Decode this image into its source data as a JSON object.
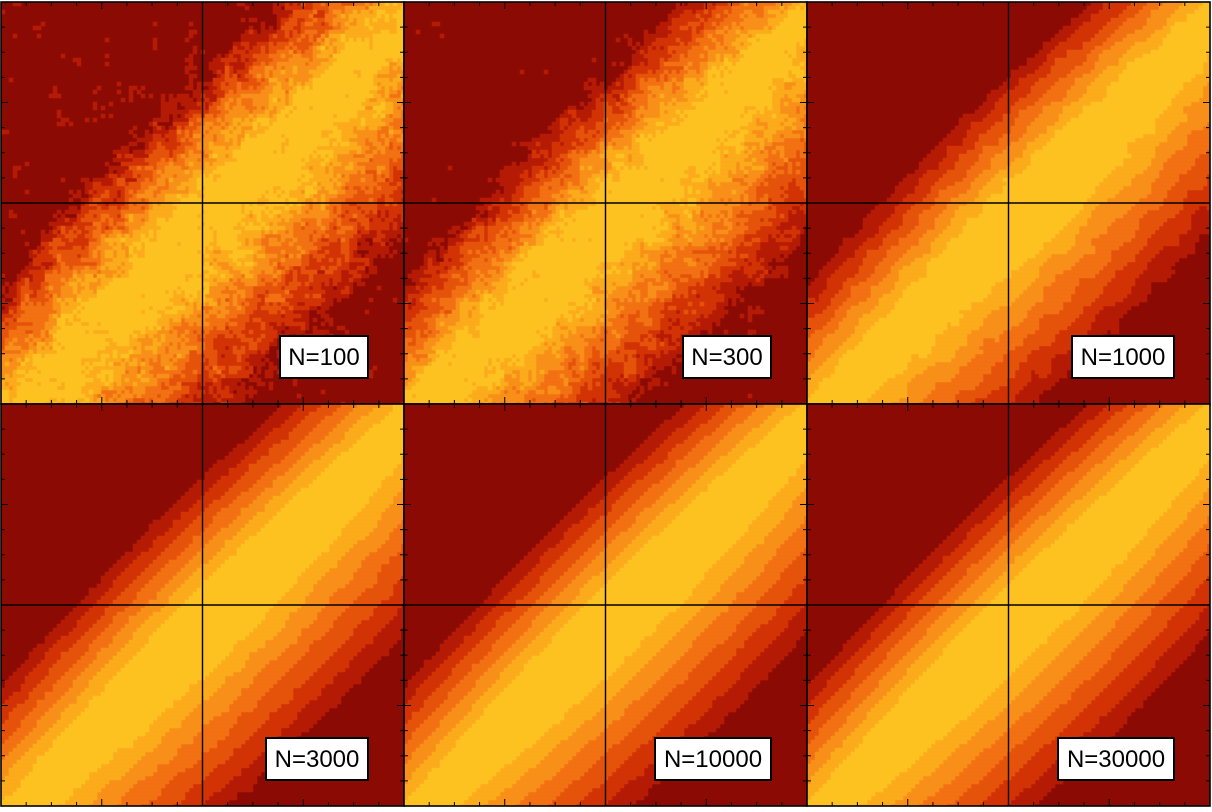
{
  "chart_data": {
    "type": "heatmap",
    "title": "",
    "layout": {
      "rows": 2,
      "cols": 3
    },
    "panels": [
      {
        "label": "N=100",
        "n": 100,
        "noise": 1.0
      },
      {
        "label": "N=300",
        "n": 300,
        "noise": 0.8
      },
      {
        "label": "N=1000",
        "n": 1000,
        "noise": 0.35
      },
      {
        "label": "N=3000",
        "n": 3000,
        "noise": 0.18
      },
      {
        "label": "N=10000",
        "n": 10000,
        "noise": 0.09
      },
      {
        "label": "N=30000",
        "n": 30000,
        "noise": 0.05
      }
    ],
    "colormap": [
      "#8c0a04",
      "#b51a05",
      "#d23305",
      "#e5530b",
      "#f27112",
      "#f88f18",
      "#fbab1b",
      "#fdc221"
    ],
    "contour_color": "#5a2a00",
    "axis_ticks": "unlabeled"
  }
}
